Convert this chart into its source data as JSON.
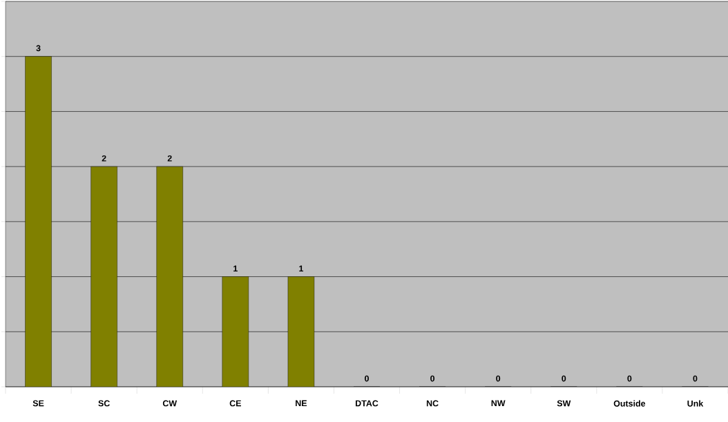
{
  "chart_data": {
    "type": "bar",
    "categories": [
      "SE",
      "SC",
      "CW",
      "CE",
      "NE",
      "DTAC",
      "NC",
      "NW",
      "SW",
      "Outside",
      "Unk"
    ],
    "values": [
      3,
      2,
      2,
      1,
      1,
      0,
      0,
      0,
      0,
      0,
      0
    ],
    "color": "#808000",
    "ylim": [
      0,
      3.5
    ],
    "yticks": [
      {
        "value": 0,
        "label": null
      },
      {
        "value": 0.5,
        "label": null
      },
      {
        "value": 1,
        "label": null
      },
      {
        "value": 1.5,
        "label": null
      },
      {
        "value": 2,
        "label": null
      },
      {
        "value": 2.5,
        "label": null
      },
      {
        "value": 3,
        "label": null
      },
      {
        "value": 3.5,
        "label": null
      }
    ],
    "tick_labels": "x",
    "grid": "y",
    "data_labels": true
  }
}
